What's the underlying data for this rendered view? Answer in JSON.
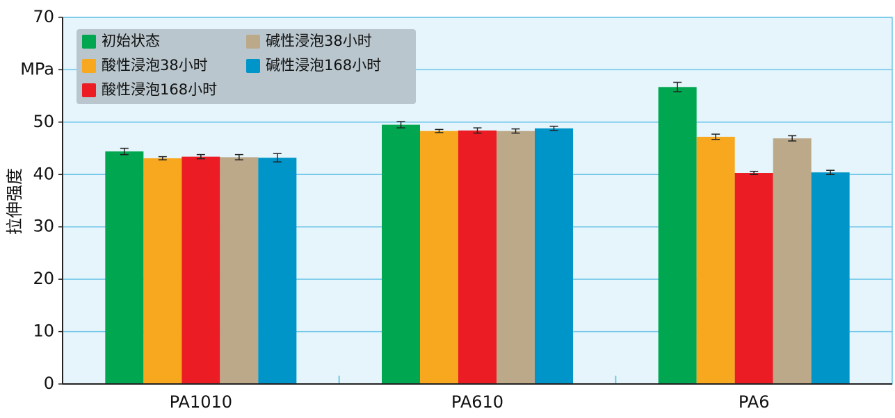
{
  "chart_data": {
    "type": "bar",
    "y_label": "拉伸强度",
    "categories": [
      "PA1010",
      "PA610",
      "PA6"
    ],
    "series": [
      {
        "name": "初始状态",
        "color": "#00a650",
        "values": [
          44.4,
          49.5,
          56.7
        ],
        "errors": [
          0.6,
          0.6,
          0.9
        ]
      },
      {
        "name": "酸性浸泡38小时",
        "color": "#f7a81f",
        "values": [
          43.1,
          48.3,
          47.2
        ],
        "errors": [
          0.3,
          0.3,
          0.5
        ]
      },
      {
        "name": "酸性浸泡168小时",
        "color": "#ec1c24",
        "values": [
          43.4,
          48.4,
          40.3
        ],
        "errors": [
          0.4,
          0.5,
          0.3
        ]
      },
      {
        "name": "碱性浸泡38小时",
        "color": "#bca98a",
        "values": [
          43.3,
          48.3,
          46.9
        ],
        "errors": [
          0.5,
          0.4,
          0.5
        ]
      },
      {
        "name": "碱性浸泡168小时",
        "color": "#0095c8",
        "values": [
          43.2,
          48.8,
          40.4
        ],
        "errors": [
          0.8,
          0.4,
          0.4
        ]
      }
    ],
    "ylim": [
      0,
      70
    ],
    "yticks": [
      0,
      10,
      20,
      30,
      40,
      50,
      {
        "value": 60,
        "label": "MPa"
      },
      70
    ],
    "grid": true,
    "legend": "upper left"
  }
}
